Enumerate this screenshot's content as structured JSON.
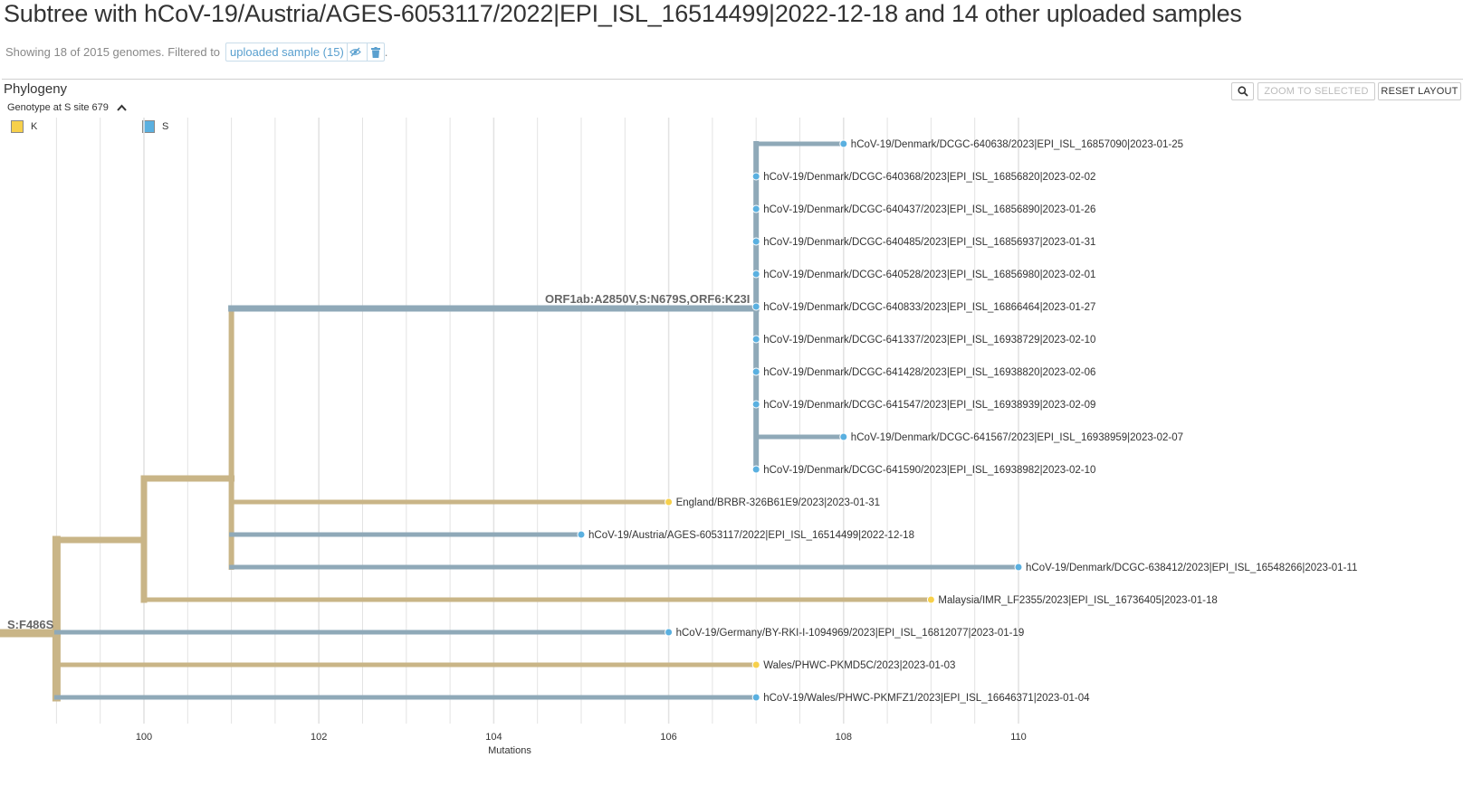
{
  "header": {
    "title": "Subtree with hCoV-19/Austria/AGES-6053117/2022|EPI_ISL_16514499|2022-12-18 and 14 other uploaded samples",
    "showing_text": "Showing 18 of 2015 genomes. Filtered to",
    "filter_badge": "uploaded sample (15)",
    "filter_period": "."
  },
  "panel": {
    "title": "Phylogeny",
    "zoom_label": "ZOOM TO SELECTED",
    "reset_label": "RESET LAYOUT"
  },
  "legend": {
    "title": "Genotype at S site 679",
    "items": [
      {
        "label": "K",
        "color": "#f7d04b"
      },
      {
        "label": "S",
        "color": "#5ab0e0"
      }
    ]
  },
  "colors": {
    "tan": "#c9b587",
    "blue": "#8fa9b8",
    "tip_yellow": "#f7d04b",
    "tip_blue": "#5ab0e0",
    "grid": "#e3e3e3"
  },
  "icons": {
    "search": "magnifier-icon",
    "hide": "eye-slash-icon",
    "remove": "trash-icon",
    "collapse": "chevron-up-icon"
  },
  "axis": {
    "label": "Mutations",
    "ticks": [
      "100",
      "102",
      "104",
      "106",
      "108",
      "110"
    ]
  },
  "tree": {
    "branch_labels": {
      "lower": "S:F486S",
      "upper": "ORF1ab:A2850V,S:N679S,ORF6:K23I"
    },
    "tips": [
      "hCoV-19/Denmark/DCGC-640638/2023|EPI_ISL_16857090|2023-01-25",
      "hCoV-19/Denmark/DCGC-640368/2023|EPI_ISL_16856820|2023-02-02",
      "hCoV-19/Denmark/DCGC-640437/2023|EPI_ISL_16856890|2023-01-26",
      "hCoV-19/Denmark/DCGC-640485/2023|EPI_ISL_16856937|2023-01-31",
      "hCoV-19/Denmark/DCGC-640528/2023|EPI_ISL_16856980|2023-02-01",
      "hCoV-19/Denmark/DCGC-640833/2023|EPI_ISL_16866464|2023-01-27",
      "hCoV-19/Denmark/DCGC-641337/2023|EPI_ISL_16938729|2023-02-10",
      "hCoV-19/Denmark/DCGC-641428/2023|EPI_ISL_16938820|2023-02-06",
      "hCoV-19/Denmark/DCGC-641547/2023|EPI_ISL_16938939|2023-02-09",
      "hCoV-19/Denmark/DCGC-641567/2023|EPI_ISL_16938959|2023-02-07",
      "hCoV-19/Denmark/DCGC-641590/2023|EPI_ISL_16938982|2023-02-10",
      "England/BRBR-326B61E9/2023|2023-01-31",
      "hCoV-19/Austria/AGES-6053117/2022|EPI_ISL_16514499|2022-12-18",
      "hCoV-19/Denmark/DCGC-638412/2023|EPI_ISL_16548266|2023-01-11",
      "Malaysia/IMR_LF2355/2023|EPI_ISL_16736405|2023-01-18",
      "hCoV-19/Germany/BY-RKI-I-1094969/2023|EPI_ISL_16812077|2023-01-19",
      "Wales/PHWC-PKMD5C/2023|2023-01-03",
      "hCoV-19/Wales/PHWC-PKMFZ1/2023|EPI_ISL_16646371|2023-01-04"
    ]
  }
}
